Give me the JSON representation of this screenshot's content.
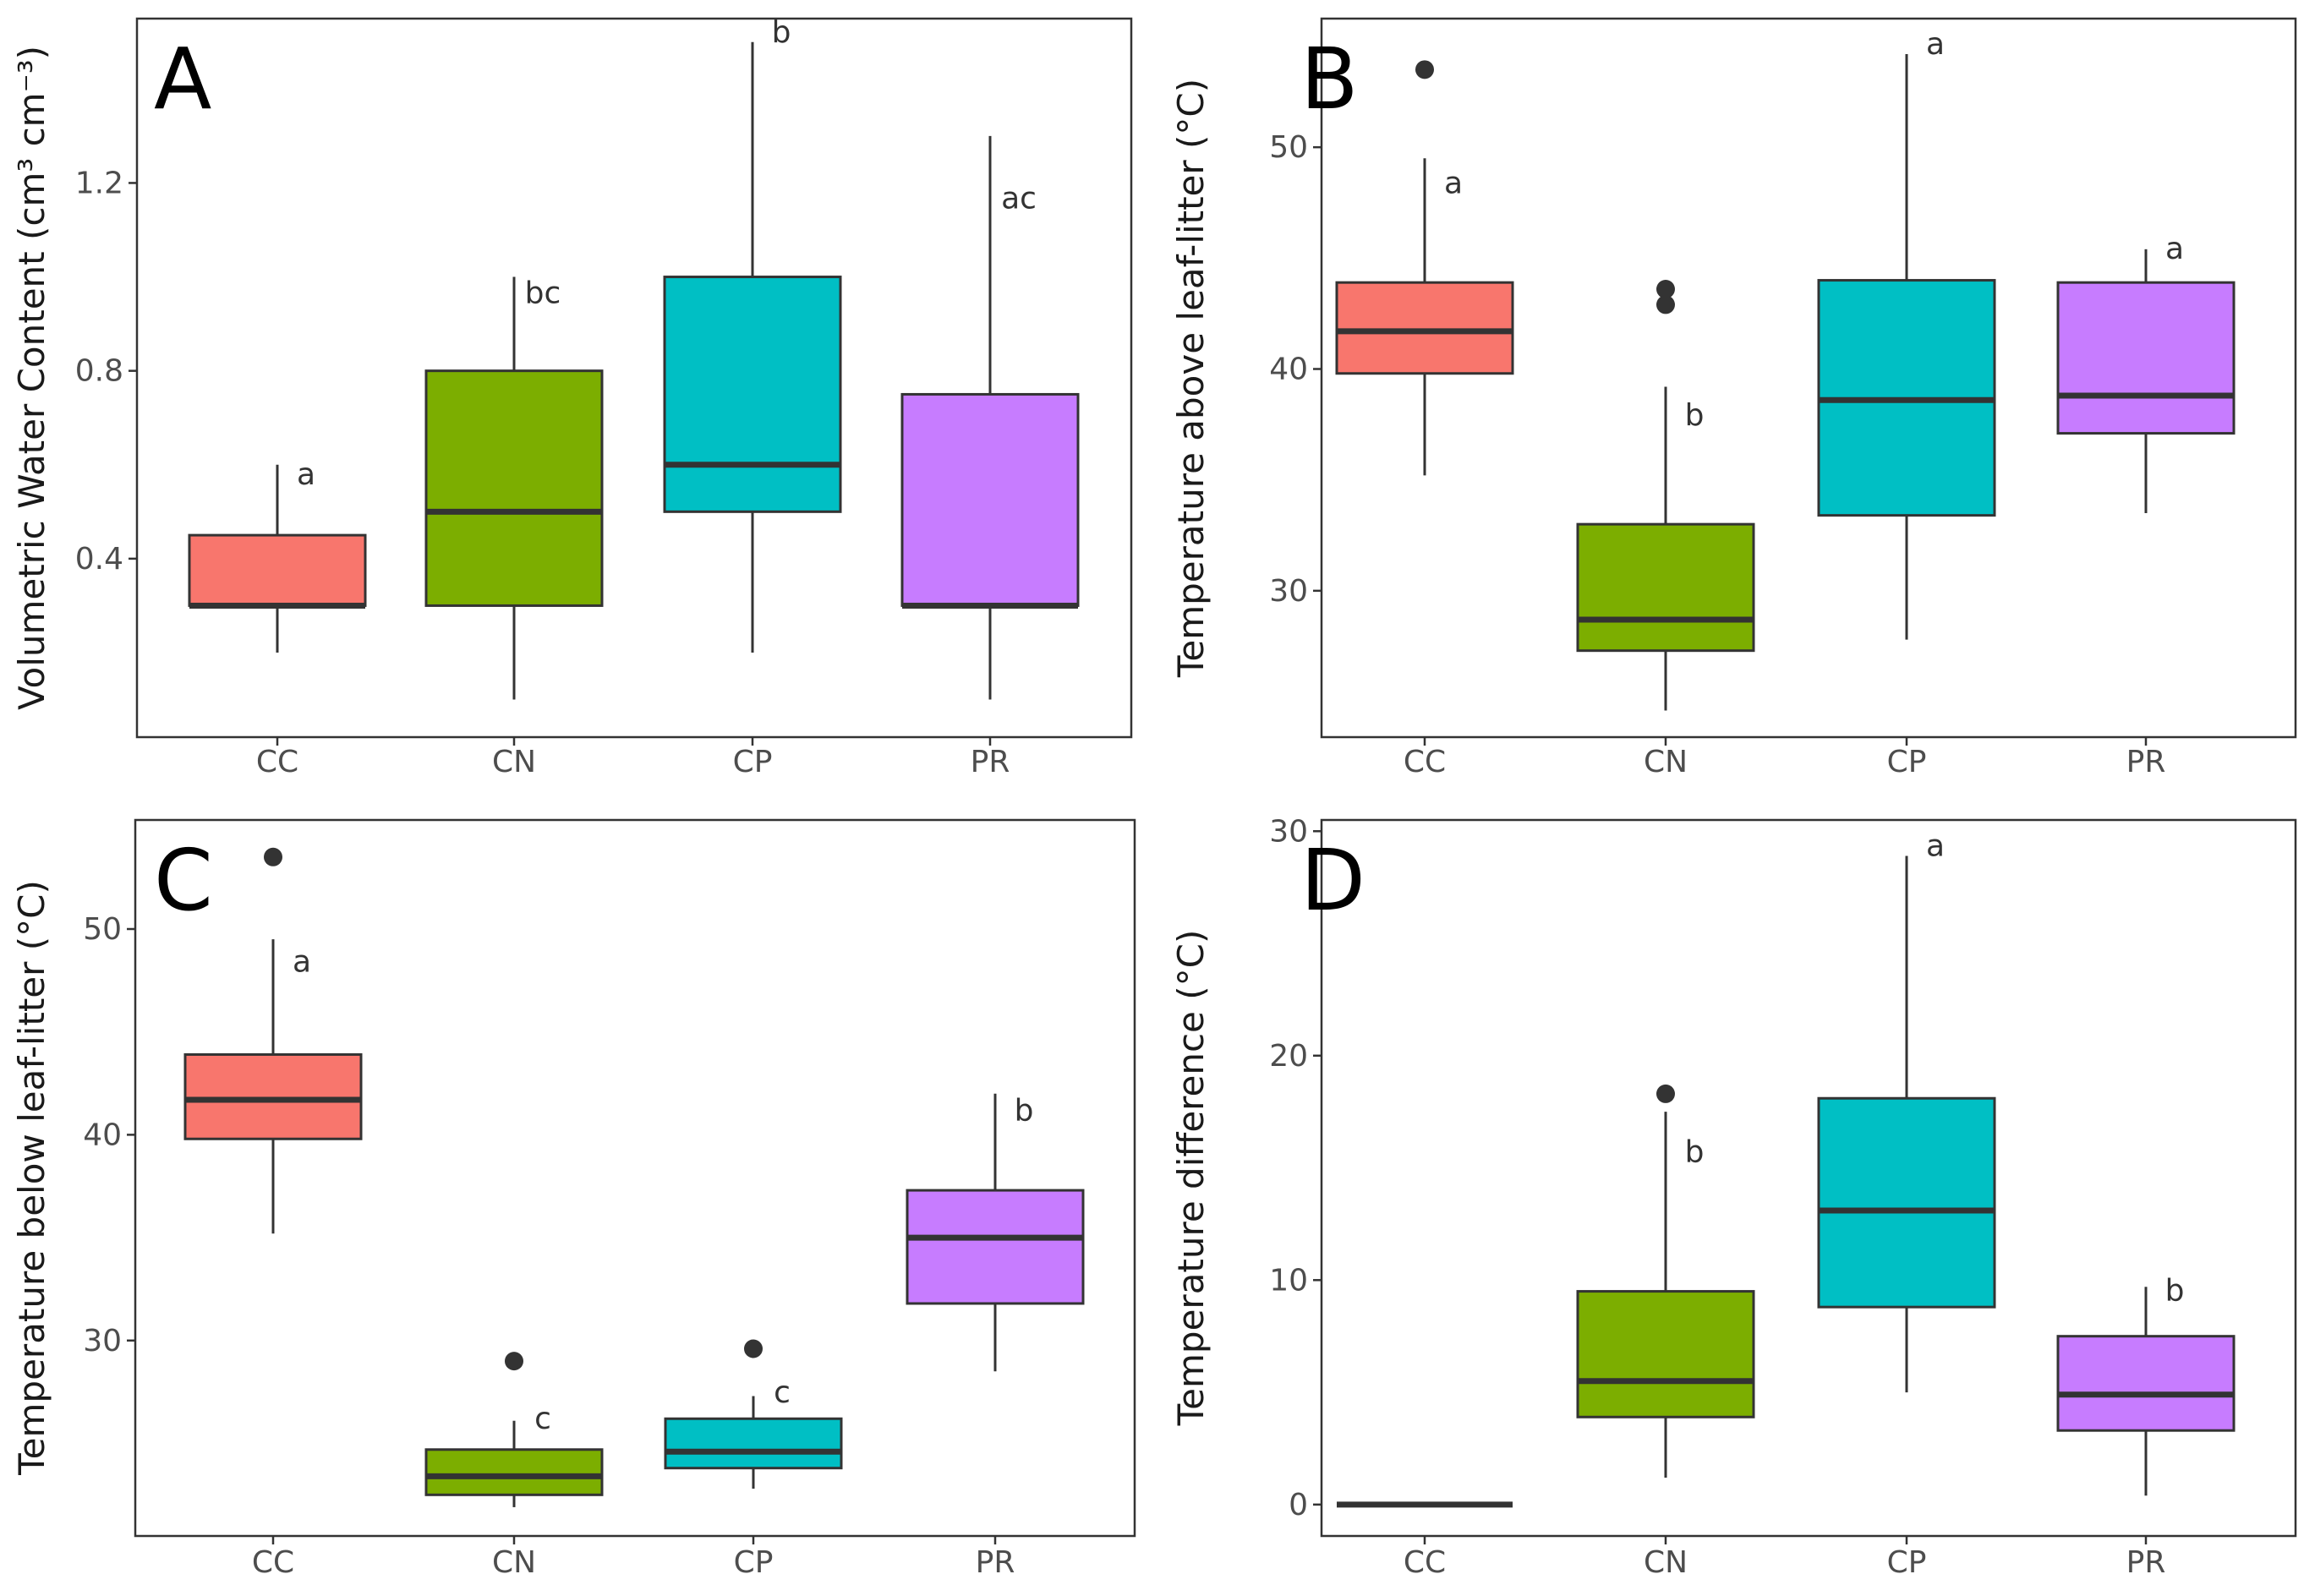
{
  "chart_data": [
    {
      "panel": "A",
      "type": "box",
      "ylabel": "Volumetric Water Content (cm³ cm⁻³)",
      "ylim": [
        0.02,
        1.55
      ],
      "yticks": [
        0.4,
        0.8,
        1.2
      ],
      "ytick_labels": [
        "0.4",
        "0.8",
        "1.2"
      ],
      "categories": [
        "CC",
        "CN",
        "CP",
        "PR"
      ],
      "boxes": [
        {
          "category": "CC",
          "color": "#F8766D",
          "min": 0.2,
          "q1": 0.3,
          "median": 0.3,
          "q3": 0.45,
          "max": 0.6,
          "outliers": [],
          "letter": "a"
        },
        {
          "category": "CN",
          "color": "#7CAE00",
          "min": 0.1,
          "q1": 0.3,
          "median": 0.5,
          "q3": 0.8,
          "max": 1.0,
          "outliers": [],
          "letter": "bc"
        },
        {
          "category": "CP",
          "color": "#00BFC4",
          "min": 0.2,
          "q1": 0.5,
          "median": 0.6,
          "q3": 1.0,
          "max": 1.5,
          "outliers": [],
          "letter": "b"
        },
        {
          "category": "PR",
          "color": "#C77CFF",
          "min": 0.1,
          "q1": 0.3,
          "median": 0.3,
          "q3": 0.75,
          "max": 1.3,
          "outliers": [],
          "letter": "ac"
        }
      ]
    },
    {
      "panel": "B",
      "type": "box",
      "ylabel": "Temperature above leaf-litter (°C)",
      "ylim": [
        23.4,
        55.8
      ],
      "yticks": [
        30,
        40,
        50
      ],
      "ytick_labels": [
        "30",
        "40",
        "50"
      ],
      "categories": [
        "CC",
        "CN",
        "CP",
        "PR"
      ],
      "boxes": [
        {
          "category": "CC",
          "color": "#F8766D",
          "min": 35.2,
          "q1": 39.8,
          "median": 41.7,
          "q3": 43.9,
          "max": 49.5,
          "outliers": [
            53.5
          ],
          "letter": "a"
        },
        {
          "category": "CN",
          "color": "#7CAE00",
          "min": 24.6,
          "q1": 27.3,
          "median": 28.7,
          "q3": 33.0,
          "max": 39.2,
          "outliers": [
            42.9,
            43.6
          ],
          "letter": "b"
        },
        {
          "category": "CP",
          "color": "#00BFC4",
          "min": 27.8,
          "q1": 33.4,
          "median": 38.6,
          "q3": 44.0,
          "max": 54.2,
          "outliers": [],
          "letter": "a"
        },
        {
          "category": "PR",
          "color": "#C77CFF",
          "min": 33.5,
          "q1": 37.1,
          "median": 38.8,
          "q3": 43.9,
          "max": 45.4,
          "outliers": [],
          "letter": "a"
        }
      ]
    },
    {
      "panel": "C",
      "type": "box",
      "ylabel": "Temperature below leaf-litter (°C)",
      "ylim": [
        20.5,
        55.3
      ],
      "yticks": [
        30,
        40,
        50
      ],
      "ytick_labels": [
        "30",
        "40",
        "50"
      ],
      "categories": [
        "CC",
        "CN",
        "CP",
        "PR"
      ],
      "boxes": [
        {
          "category": "CC",
          "color": "#F8766D",
          "min": 35.2,
          "q1": 39.8,
          "median": 41.7,
          "q3": 43.9,
          "max": 49.5,
          "outliers": [
            53.5
          ],
          "letter": "a"
        },
        {
          "category": "CN",
          "color": "#7CAE00",
          "min": 21.9,
          "q1": 22.5,
          "median": 23.4,
          "q3": 24.7,
          "max": 26.1,
          "outliers": [
            29.0
          ],
          "letter": "c"
        },
        {
          "category": "CP",
          "color": "#00BFC4",
          "min": 22.8,
          "q1": 23.8,
          "median": 24.6,
          "q3": 26.2,
          "max": 27.3,
          "outliers": [
            29.6
          ],
          "letter": "c"
        },
        {
          "category": "PR",
          "color": "#C77CFF",
          "min": 28.5,
          "q1": 31.8,
          "median": 35.0,
          "q3": 37.3,
          "max": 42.0,
          "outliers": [],
          "letter": "b"
        }
      ]
    },
    {
      "panel": "D",
      "type": "box",
      "ylabel": "Temperature difference (°C)",
      "ylim": [
        -1.4,
        30.5
      ],
      "yticks": [
        0,
        10,
        20,
        30
      ],
      "ytick_labels": [
        "0",
        "10",
        "20",
        "30"
      ],
      "categories": [
        "CC",
        "CN",
        "CP",
        "PR"
      ],
      "boxes": [
        {
          "category": "CC",
          "color": "#F8766D",
          "min": 0,
          "q1": 0,
          "median": 0,
          "q3": 0,
          "max": 0,
          "outliers": [],
          "letter": ""
        },
        {
          "category": "CN",
          "color": "#7CAE00",
          "min": 1.2,
          "q1": 3.9,
          "median": 5.5,
          "q3": 9.5,
          "max": 17.5,
          "outliers": [
            18.3
          ],
          "letter": "b"
        },
        {
          "category": "CP",
          "color": "#00BFC4",
          "min": 5.0,
          "q1": 8.8,
          "median": 13.1,
          "q3": 18.1,
          "max": 28.9,
          "outliers": [],
          "letter": "a"
        },
        {
          "category": "PR",
          "color": "#C77CFF",
          "min": 0.4,
          "q1": 3.3,
          "median": 4.9,
          "q3": 7.5,
          "max": 9.7,
          "outliers": [],
          "letter": "b"
        }
      ]
    }
  ]
}
